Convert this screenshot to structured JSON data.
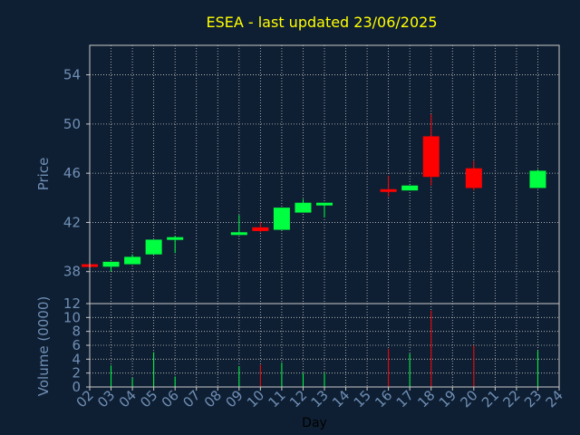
{
  "colors": {
    "background": "#0f1f33",
    "title": "#ffff00",
    "axis_text": "#6f8fb5",
    "xlabel": "#000000",
    "grid": "#c8c8c8",
    "up": "#00ff40",
    "down": "#ff0000"
  },
  "chart_data": [
    {
      "type": "candlestick",
      "title": "ESEA - last updated 23/06/2025",
      "ylabel": "Price",
      "ylim": [
        35.4,
        56.4
      ],
      "yticks": [
        38,
        42,
        46,
        50,
        54
      ],
      "grid": true,
      "points": [
        {
          "day": "02",
          "open": 38.6,
          "high": 38.7,
          "low": 38.5,
          "close": 38.55
        },
        {
          "day": "03",
          "open": 38.4,
          "high": 38.8,
          "low": 38.0,
          "close": 38.8
        },
        {
          "day": "04",
          "open": 38.6,
          "high": 39.4,
          "low": 38.6,
          "close": 39.2
        },
        {
          "day": "05",
          "open": 39.4,
          "high": 40.6,
          "low": 39.4,
          "close": 40.6
        },
        {
          "day": "06",
          "open": 40.6,
          "high": 40.9,
          "low": 39.5,
          "close": 40.8
        },
        {
          "day": "09",
          "open": 41.0,
          "high": 42.6,
          "low": 41.0,
          "close": 41.2
        },
        {
          "day": "10",
          "open": 41.6,
          "high": 42.0,
          "low": 41.2,
          "close": 41.3
        },
        {
          "day": "11",
          "open": 41.4,
          "high": 43.2,
          "low": 41.4,
          "close": 43.2
        },
        {
          "day": "12",
          "open": 42.8,
          "high": 43.9,
          "low": 42.8,
          "close": 43.6
        },
        {
          "day": "13",
          "open": 43.5,
          "high": 43.6,
          "low": 42.4,
          "close": 43.6
        },
        {
          "day": "16",
          "open": 44.7,
          "high": 45.8,
          "low": 44.1,
          "close": 44.5
        },
        {
          "day": "17",
          "open": 44.6,
          "high": 45.0,
          "low": 44.6,
          "close": 45.0
        },
        {
          "day": "18",
          "open": 49.0,
          "high": 50.8,
          "low": 45.0,
          "close": 45.7
        },
        {
          "day": "20",
          "open": 46.4,
          "high": 47.0,
          "low": 44.6,
          "close": 44.8
        },
        {
          "day": "23",
          "open": 44.8,
          "high": 46.3,
          "low": 44.8,
          "close": 46.2
        }
      ]
    },
    {
      "type": "bar",
      "ylabel": "Volume (0000)",
      "xlabel": "Day",
      "ylim": [
        0,
        12
      ],
      "yticks": [
        0,
        2,
        4,
        6,
        8,
        10,
        12
      ],
      "categories": [
        "02",
        "03",
        "04",
        "05",
        "06",
        "07",
        "08",
        "09",
        "10",
        "11",
        "12",
        "13",
        "14",
        "15",
        "16",
        "17",
        "18",
        "19",
        "20",
        "21",
        "22",
        "23",
        "24"
      ],
      "grid": true,
      "bars": [
        {
          "day": "03",
          "volume": 3.1,
          "direction": "up"
        },
        {
          "day": "04",
          "volume": 1.3,
          "direction": "up"
        },
        {
          "day": "05",
          "volume": 5.0,
          "direction": "up"
        },
        {
          "day": "06",
          "volume": 1.5,
          "direction": "up"
        },
        {
          "day": "09",
          "volume": 3.0,
          "direction": "up"
        },
        {
          "day": "10",
          "volume": 3.2,
          "direction": "down"
        },
        {
          "day": "11",
          "volume": 3.5,
          "direction": "up"
        },
        {
          "day": "12",
          "volume": 2.0,
          "direction": "up"
        },
        {
          "day": "13",
          "volume": 2.0,
          "direction": "up"
        },
        {
          "day": "16",
          "volume": 5.5,
          "direction": "down"
        },
        {
          "day": "17",
          "volume": 4.8,
          "direction": "up"
        },
        {
          "day": "18",
          "volume": 11.0,
          "direction": "down"
        },
        {
          "day": "20",
          "volume": 6.0,
          "direction": "down"
        },
        {
          "day": "23",
          "volume": 5.2,
          "direction": "up"
        }
      ]
    }
  ]
}
